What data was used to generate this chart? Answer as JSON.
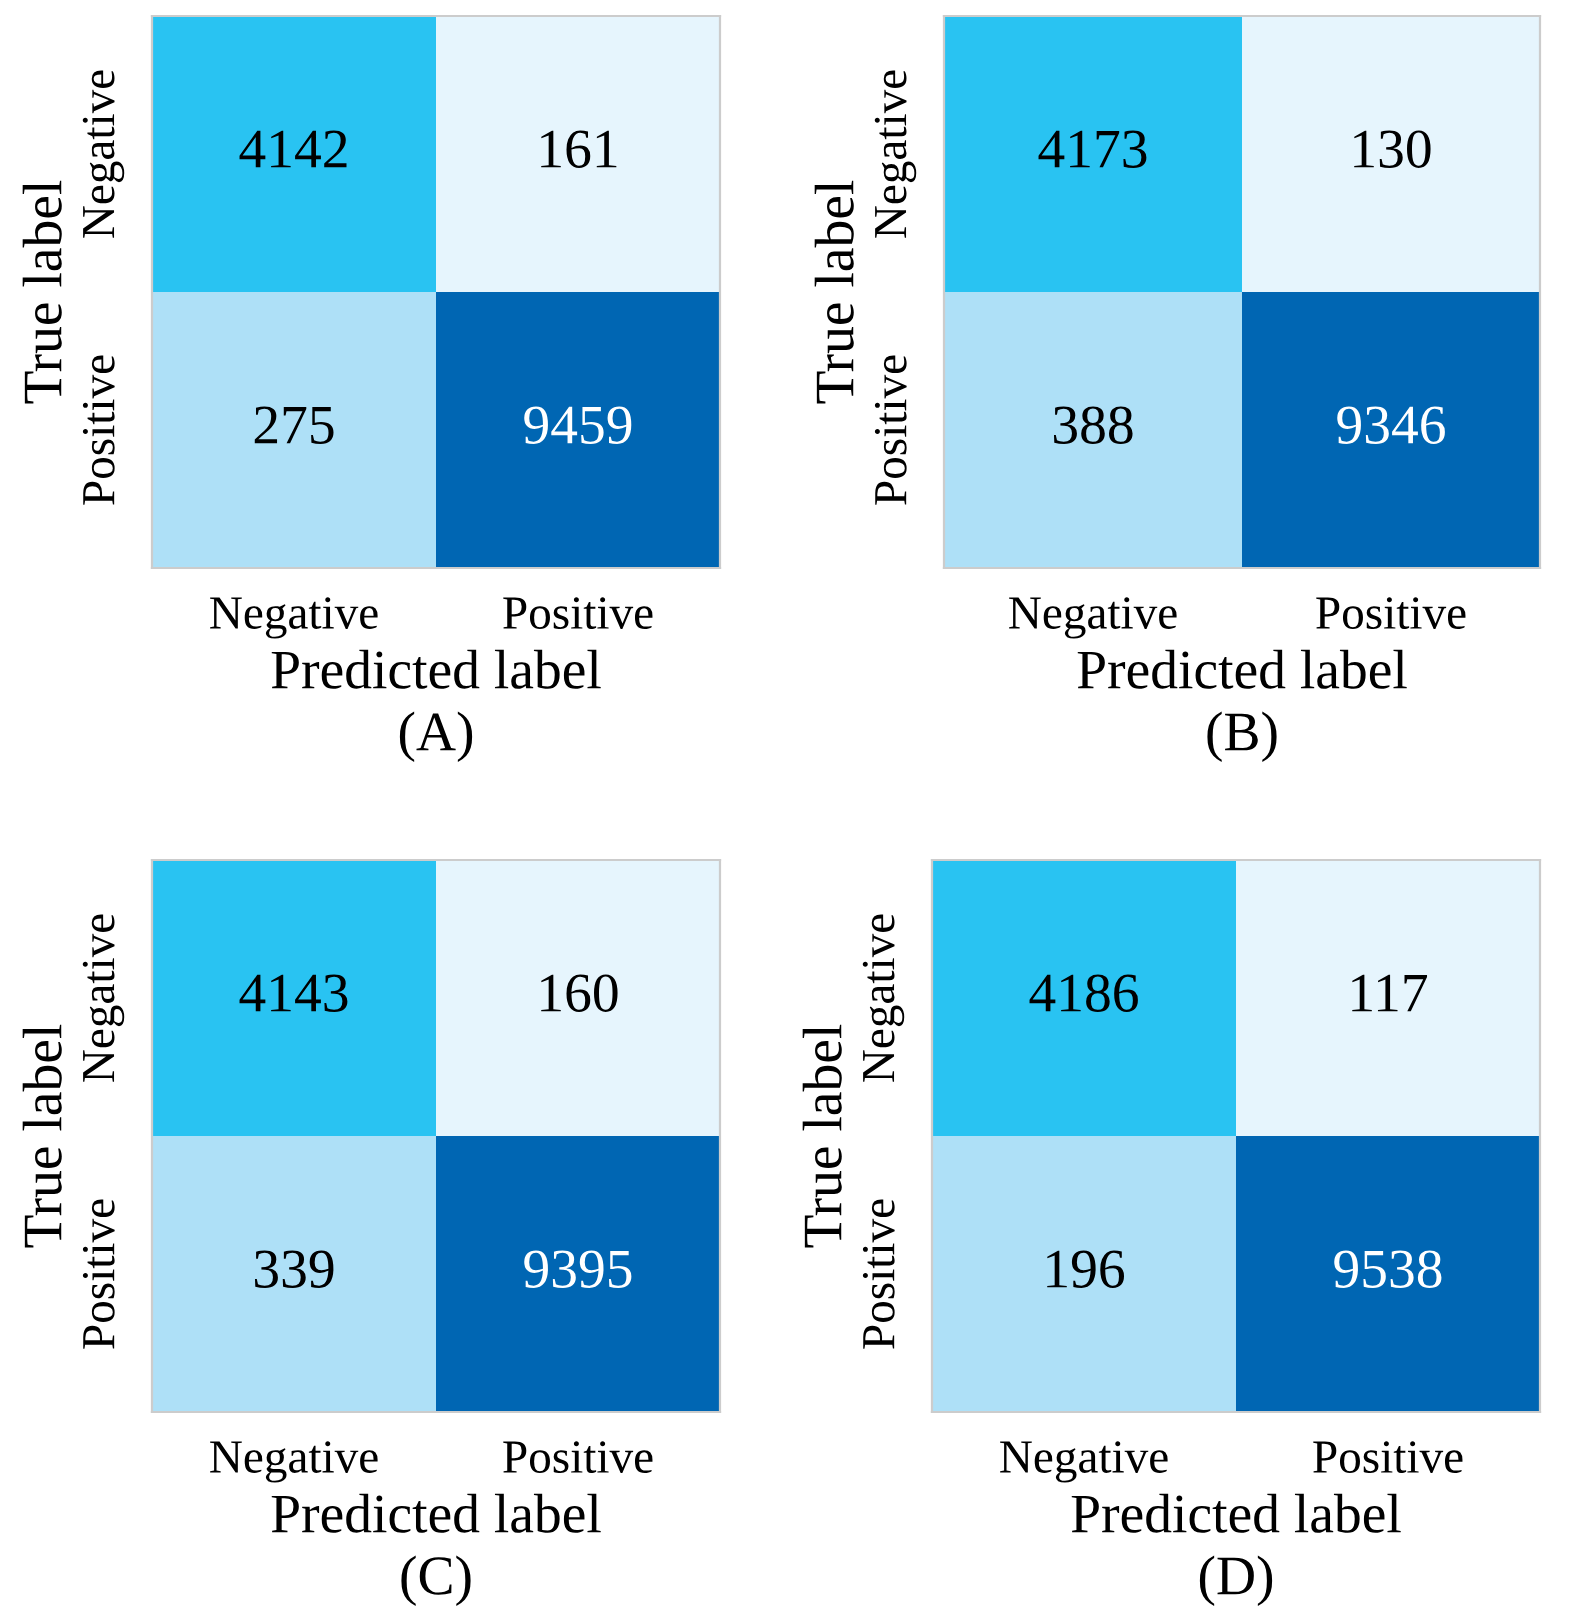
{
  "chart_data": [
    {
      "type": "heatmap",
      "title": "(A)",
      "xlabel": "Predicted label",
      "ylabel": "True label",
      "categories": [
        "Negative",
        "Positive"
      ],
      "y_categories": [
        "Negative",
        "Positive"
      ],
      "cells": [
        [
          4142,
          161
        ],
        [
          275,
          9459
        ]
      ],
      "colors": [
        [
          "#29c3f2",
          "#e6f5fd"
        ],
        [
          "#aee0f7",
          "#0066b3"
        ]
      ],
      "data_labels": true
    },
    {
      "type": "heatmap",
      "title": "(B)",
      "xlabel": "Predicted label",
      "ylabel": "True label",
      "categories": [
        "Negative",
        "Positive"
      ],
      "y_categories": [
        "Negative",
        "Positive"
      ],
      "cells": [
        [
          4173,
          130
        ],
        [
          388,
          9346
        ]
      ],
      "colors": [
        [
          "#29c3f2",
          "#e6f5fd"
        ],
        [
          "#aee0f7",
          "#0066b3"
        ]
      ],
      "data_labels": true
    },
    {
      "type": "heatmap",
      "title": "(C)",
      "xlabel": "Predicted label",
      "ylabel": "True label",
      "categories": [
        "Negative",
        "Positive"
      ],
      "y_categories": [
        "Negative",
        "Positive"
      ],
      "cells": [
        [
          4143,
          160
        ],
        [
          339,
          9395
        ]
      ],
      "colors": [
        [
          "#29c3f2",
          "#e6f5fd"
        ],
        [
          "#aee0f7",
          "#0066b3"
        ]
      ],
      "data_labels": true
    },
    {
      "type": "heatmap",
      "title": "(D)",
      "xlabel": "Predicted label",
      "ylabel": "True label",
      "categories": [
        "Negative",
        "Positive"
      ],
      "y_categories": [
        "Negative",
        "Positive"
      ],
      "cells": [
        [
          4186,
          117
        ],
        [
          196,
          9538
        ]
      ],
      "colors": [
        [
          "#29c3f2",
          "#e6f5fd"
        ],
        [
          "#aee0f7",
          "#0066b3"
        ]
      ],
      "data_labels": true
    }
  ]
}
